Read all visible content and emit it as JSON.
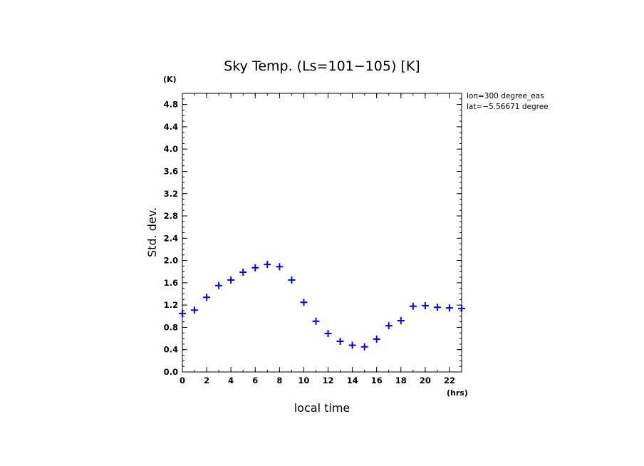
{
  "chart_data": {
    "type": "scatter",
    "title": "Sky Temp. (Ls=101−105) [K]",
    "xlabel": "local time",
    "ylabel": "Std. dev.",
    "x_unit": "(hrs)",
    "y_unit": "(K)",
    "xlim": [
      0,
      23
    ],
    "ylim": [
      0,
      5.0
    ],
    "x_ticks": [
      0,
      2,
      4,
      6,
      8,
      10,
      12,
      14,
      16,
      18,
      20,
      22
    ],
    "y_ticks": [
      0.0,
      0.4,
      0.8,
      1.2,
      1.6,
      2.0,
      2.4,
      2.8,
      3.2,
      3.6,
      4.0,
      4.4,
      4.8
    ],
    "y_tick_labels": [
      "0.0",
      "0.4",
      "0.8",
      "1.2",
      "1.6",
      "2.0",
      "2.4",
      "2.8",
      "3.2",
      "3.6",
      "4.0",
      "4.4",
      "4.8"
    ],
    "annotations": [
      "lon=300 degree_eas",
      "lat=−5.56671 degree"
    ],
    "marker": "+",
    "series": [
      {
        "color": "#0000ff",
        "x": [
          0,
          1,
          2,
          3,
          4,
          5,
          6,
          7,
          8,
          9,
          10,
          11,
          12,
          13,
          14,
          15,
          16,
          17,
          18,
          19,
          20,
          21,
          22,
          23
        ],
        "y": [
          1.05,
          1.11,
          1.34,
          1.55,
          1.65,
          1.79,
          1.87,
          1.93,
          1.89,
          1.65,
          1.25,
          0.91,
          0.69,
          0.55,
          0.48,
          0.45,
          0.59,
          0.83,
          0.92,
          1.18,
          1.19,
          1.16,
          1.15,
          1.14
        ]
      }
    ]
  }
}
